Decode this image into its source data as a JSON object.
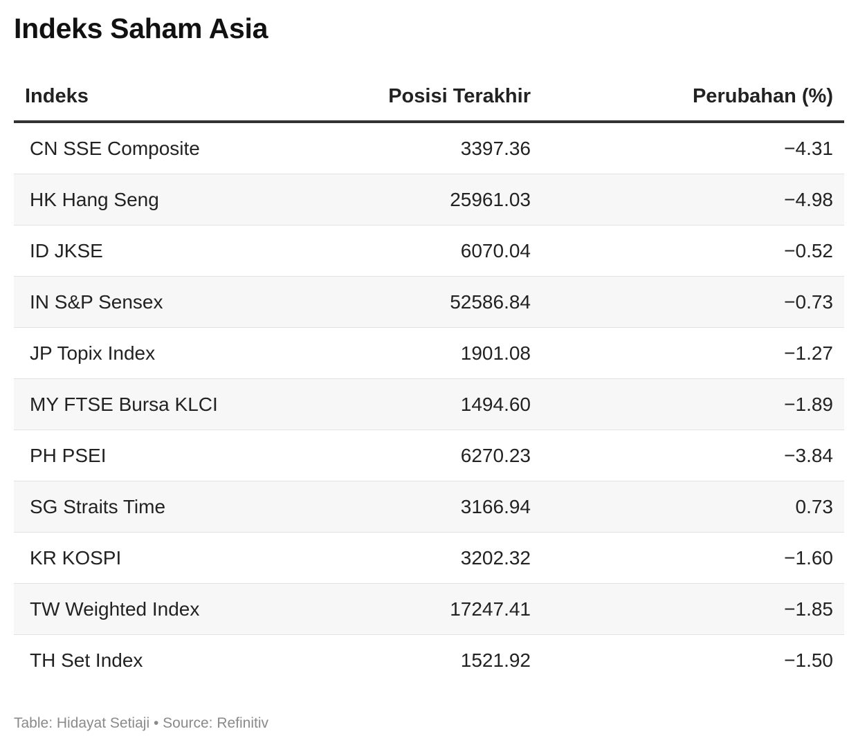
{
  "title": "Indeks Saham Asia",
  "columns": {
    "name": "Indeks",
    "position": "Posisi Terakhir",
    "change": "Perubahan (%)"
  },
  "rows": [
    {
      "name": "CN SSE Composite",
      "position": "3397.36",
      "change": "−4.31"
    },
    {
      "name": "HK Hang Seng",
      "position": "25961.03",
      "change": "−4.98"
    },
    {
      "name": "ID JKSE",
      "position": "6070.04",
      "change": "−0.52"
    },
    {
      "name": "IN S&P Sensex",
      "position": "52586.84",
      "change": "−0.73"
    },
    {
      "name": "JP Topix Index",
      "position": "1901.08",
      "change": "−1.27"
    },
    {
      "name": "MY FTSE Bursa KLCI",
      "position": "1494.60",
      "change": "−1.89"
    },
    {
      "name": "PH PSEI",
      "position": "6270.23",
      "change": "−3.84"
    },
    {
      "name": "SG Straits Time",
      "position": "3166.94",
      "change": "0.73"
    },
    {
      "name": "KR KOSPI",
      "position": "3202.32",
      "change": "−1.60"
    },
    {
      "name": "TW Weighted Index",
      "position": "17247.41",
      "change": "−1.85"
    },
    {
      "name": "TH Set Index",
      "position": "1521.92",
      "change": "−1.50"
    }
  ],
  "footer": "Table: Hidayat Setiaji • Source: Refinitiv"
}
